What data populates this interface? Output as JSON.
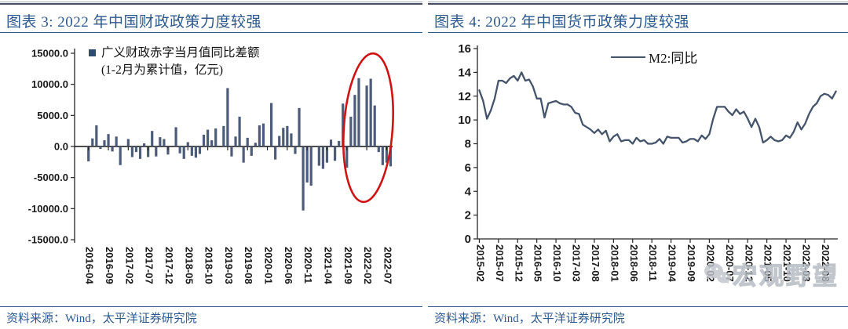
{
  "panels": {
    "left": {
      "title": "图表 3: 2022 年中国财政政策力度较强",
      "legend_line1": "广义财政赤字当月值同比差额",
      "legend_line2": "(1-2月为累计值，亿元)",
      "source": "资料来源：Wind，太平洋证券研究院"
    },
    "right": {
      "title": "图表 4: 2022 年中国货币政策力度较强",
      "legend": "M2:同比",
      "source": "资料来源：Wind，太平洋证券研究院"
    },
    "watermark_text": "宏观野望"
  },
  "colors": {
    "accent_blue": "#2c598c",
    "rule_dark": "#454e63",
    "rule_light": "#9aa3b2",
    "bar_fill": "#4d5c79",
    "line_stroke": "#44546a",
    "legend_square": "#2f4b6e",
    "highlight_red": "#cf1313",
    "axis": "#262626",
    "watermark_gray": "#c6cad2"
  },
  "chart_data": [
    {
      "type": "bar",
      "title": "广义财政赤字当月值同比差额 (1-2月为累计值，亿元)",
      "ylim": [
        -15000,
        15000
      ],
      "y_tick_labels": [
        "15000.0",
        "10000.0",
        "5000.0",
        "0.0",
        "-5000.0",
        "-10000.0",
        "-15000.0"
      ],
      "x_tick_labels": [
        "2016-04",
        "2016-09",
        "2017-02",
        "2017-07",
        "2017-12",
        "2018-05",
        "2018-10",
        "2019-03",
        "2019-08",
        "2020-01",
        "2020-06",
        "2020-11",
        "2021-04",
        "2021-09",
        "2022-02",
        "2022-07"
      ],
      "first_label_index": 3,
      "label_every": 5,
      "values": [
        null,
        null,
        null,
        -2400,
        1300,
        3400,
        -400,
        1000,
        2000,
        -800,
        1600,
        -3000,
        null,
        1200,
        -1700,
        -900,
        -2000,
        500,
        -1700,
        2500,
        -1600,
        1500,
        1200,
        -1300,
        null,
        3100,
        -1100,
        -2000,
        700,
        -1500,
        -1800,
        -1200,
        1900,
        2700,
        1000,
        2900,
        null,
        3300,
        9400,
        -1600,
        1600,
        4800,
        -2600,
        1400,
        -1500,
        600,
        3400,
        3700,
        null,
        7000,
        -2100,
        1700,
        3000,
        3300,
        2100,
        -1200,
        6200,
        -10300,
        -5800,
        -6300,
        null,
        -3100,
        -3600,
        -2600,
        1100,
        -2300,
        900,
        6900,
        -3400,
        4800,
        8300,
        11000,
        null,
        9800,
        10900,
        6600,
        -900,
        -3000,
        -2600,
        -3200
      ],
      "highlight_ellipse": {
        "color": "#cf1313",
        "note": "circles the strong 2022 fiscal bars"
      },
      "grid": false,
      "legend_position": "top-left"
    },
    {
      "type": "line",
      "title": "M2:同比",
      "ylim": [
        0,
        16
      ],
      "y_tick_labels": [
        "16",
        "14",
        "12",
        "10",
        "8",
        "6",
        "4",
        "2",
        "0"
      ],
      "x_tick_labels": [
        "2015-02",
        "2015-07",
        "2015-12",
        "2016-05",
        "2016-10",
        "2017-03",
        "2017-08",
        "2018-01",
        "2018-06",
        "2018-11",
        "2019-04",
        "2019-09",
        "2020-02",
        "2020-07",
        "2020-12",
        "2021-05",
        "2021-10",
        "2022-03",
        "2022-08"
      ],
      "first_label_index": 0,
      "label_every": 5,
      "values": [
        12.5,
        11.6,
        10.1,
        10.8,
        11.8,
        13.3,
        13.3,
        13.1,
        13.5,
        13.7,
        13.3,
        14.0,
        13.3,
        13.4,
        12.8,
        11.8,
        11.8,
        10.2,
        11.4,
        11.5,
        11.6,
        11.4,
        11.3,
        11.3,
        11.1,
        10.6,
        10.5,
        9.6,
        9.4,
        9.2,
        8.9,
        9.2,
        8.8,
        9.1,
        8.2,
        8.6,
        8.8,
        8.2,
        8.3,
        8.3,
        8.0,
        8.5,
        8.2,
        8.3,
        8.0,
        8.0,
        8.1,
        8.4,
        8.0,
        8.6,
        8.5,
        8.5,
        8.5,
        8.1,
        8.2,
        8.4,
        8.4,
        8.2,
        8.7,
        8.4,
        8.8,
        10.1,
        11.1,
        11.1,
        11.1,
        10.7,
        10.4,
        10.9,
        10.5,
        10.7,
        10.1,
        9.4,
        10.1,
        9.4,
        8.1,
        8.3,
        8.6,
        8.3,
        8.2,
        8.3,
        8.7,
        8.5,
        9.0,
        9.8,
        9.2,
        9.7,
        10.5,
        11.1,
        11.4,
        12.0,
        12.2,
        12.1,
        11.8,
        12.4
      ],
      "grid": false,
      "legend_position": "top-center"
    }
  ]
}
